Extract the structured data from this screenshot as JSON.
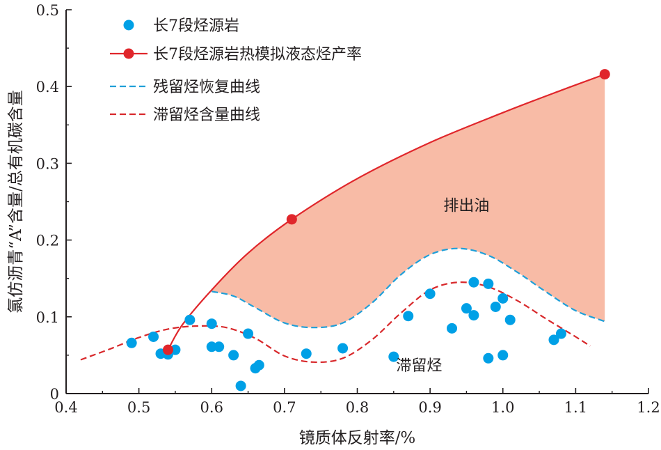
{
  "chart_data": {
    "type": "scatter",
    "xlabel": "镜质体反射率/%",
    "ylabel": "氯仿沥青“A”含量/总有机碳含量",
    "xlim": [
      0.4,
      1.2
    ],
    "ylim": [
      0,
      0.5
    ],
    "xticks": [
      "0.4",
      "0.5",
      "0.6",
      "0.7",
      "0.8",
      "0.9",
      "1.0",
      "1.1",
      "1.2"
    ],
    "yticks": [
      "0",
      "0.1",
      "0.2",
      "0.3",
      "0.4",
      "0.5"
    ],
    "grid": false,
    "legend_position": "top-left",
    "colors": {
      "scatter": "#00a0e6",
      "yield": "#e0262b",
      "residual": "#1f9fd8",
      "retained": "#d8282b",
      "fill": "#f8bba6",
      "axis": "#231f20"
    },
    "series": [
      {
        "name": "长7段烃源岩",
        "kind": "scatter",
        "points": [
          [
            0.49,
            0.066
          ],
          [
            0.52,
            0.074
          ],
          [
            0.53,
            0.052
          ],
          [
            0.54,
            0.051
          ],
          [
            0.55,
            0.057
          ],
          [
            0.57,
            0.096
          ],
          [
            0.6,
            0.091
          ],
          [
            0.6,
            0.061
          ],
          [
            0.61,
            0.061
          ],
          [
            0.63,
            0.05
          ],
          [
            0.64,
            0.01
          ],
          [
            0.65,
            0.078
          ],
          [
            0.66,
            0.033
          ],
          [
            0.665,
            0.037
          ],
          [
            0.73,
            0.052
          ],
          [
            0.78,
            0.059
          ],
          [
            0.85,
            0.048
          ],
          [
            0.87,
            0.101
          ],
          [
            0.9,
            0.13
          ],
          [
            0.93,
            0.085
          ],
          [
            0.95,
            0.111
          ],
          [
            0.96,
            0.145
          ],
          [
            0.96,
            0.102
          ],
          [
            0.98,
            0.143
          ],
          [
            0.98,
            0.046
          ],
          [
            0.99,
            0.113
          ],
          [
            1.0,
            0.124
          ],
          [
            1.0,
            0.05
          ],
          [
            1.01,
            0.096
          ],
          [
            1.07,
            0.07
          ],
          [
            1.08,
            0.078
          ]
        ]
      },
      {
        "name": "长7段烃源岩热模拟液态烃产率",
        "kind": "line",
        "points": [
          [
            0.54,
            0.057
          ],
          [
            0.71,
            0.227
          ],
          [
            1.14,
            0.416
          ]
        ],
        "curve": [
          [
            0.54,
            0.057
          ],
          [
            0.56,
            0.09
          ],
          [
            0.6,
            0.135
          ],
          [
            0.65,
            0.183
          ],
          [
            0.71,
            0.227
          ],
          [
            0.8,
            0.28
          ],
          [
            0.9,
            0.327
          ],
          [
            1.0,
            0.366
          ],
          [
            1.08,
            0.395
          ],
          [
            1.14,
            0.416
          ]
        ]
      },
      {
        "name": "残留烃恢复曲线",
        "kind": "dashed",
        "curve": [
          [
            0.6,
            0.133
          ],
          [
            0.63,
            0.127
          ],
          [
            0.66,
            0.112
          ],
          [
            0.7,
            0.092
          ],
          [
            0.74,
            0.086
          ],
          [
            0.78,
            0.092
          ],
          [
            0.82,
            0.118
          ],
          [
            0.86,
            0.155
          ],
          [
            0.9,
            0.181
          ],
          [
            0.94,
            0.189
          ],
          [
            0.98,
            0.18
          ],
          [
            1.02,
            0.158
          ],
          [
            1.06,
            0.132
          ],
          [
            1.1,
            0.108
          ],
          [
            1.14,
            0.094
          ]
        ]
      },
      {
        "name": "滞留烃含量曲线",
        "kind": "dashed",
        "curve": [
          [
            0.42,
            0.044
          ],
          [
            0.46,
            0.058
          ],
          [
            0.5,
            0.073
          ],
          [
            0.54,
            0.084
          ],
          [
            0.58,
            0.088
          ],
          [
            0.62,
            0.086
          ],
          [
            0.66,
            0.072
          ],
          [
            0.7,
            0.049
          ],
          [
            0.74,
            0.041
          ],
          [
            0.78,
            0.046
          ],
          [
            0.82,
            0.07
          ],
          [
            0.86,
            0.105
          ],
          [
            0.9,
            0.135
          ],
          [
            0.94,
            0.145
          ],
          [
            0.98,
            0.139
          ],
          [
            1.02,
            0.121
          ],
          [
            1.06,
            0.097
          ],
          [
            1.1,
            0.074
          ],
          [
            1.12,
            0.062
          ]
        ]
      }
    ],
    "annotations": [
      {
        "text": "排出油",
        "x": 0.95,
        "y": 0.238
      },
      {
        "text": "滞留烃",
        "x": 0.885,
        "y": 0.03
      }
    ]
  }
}
